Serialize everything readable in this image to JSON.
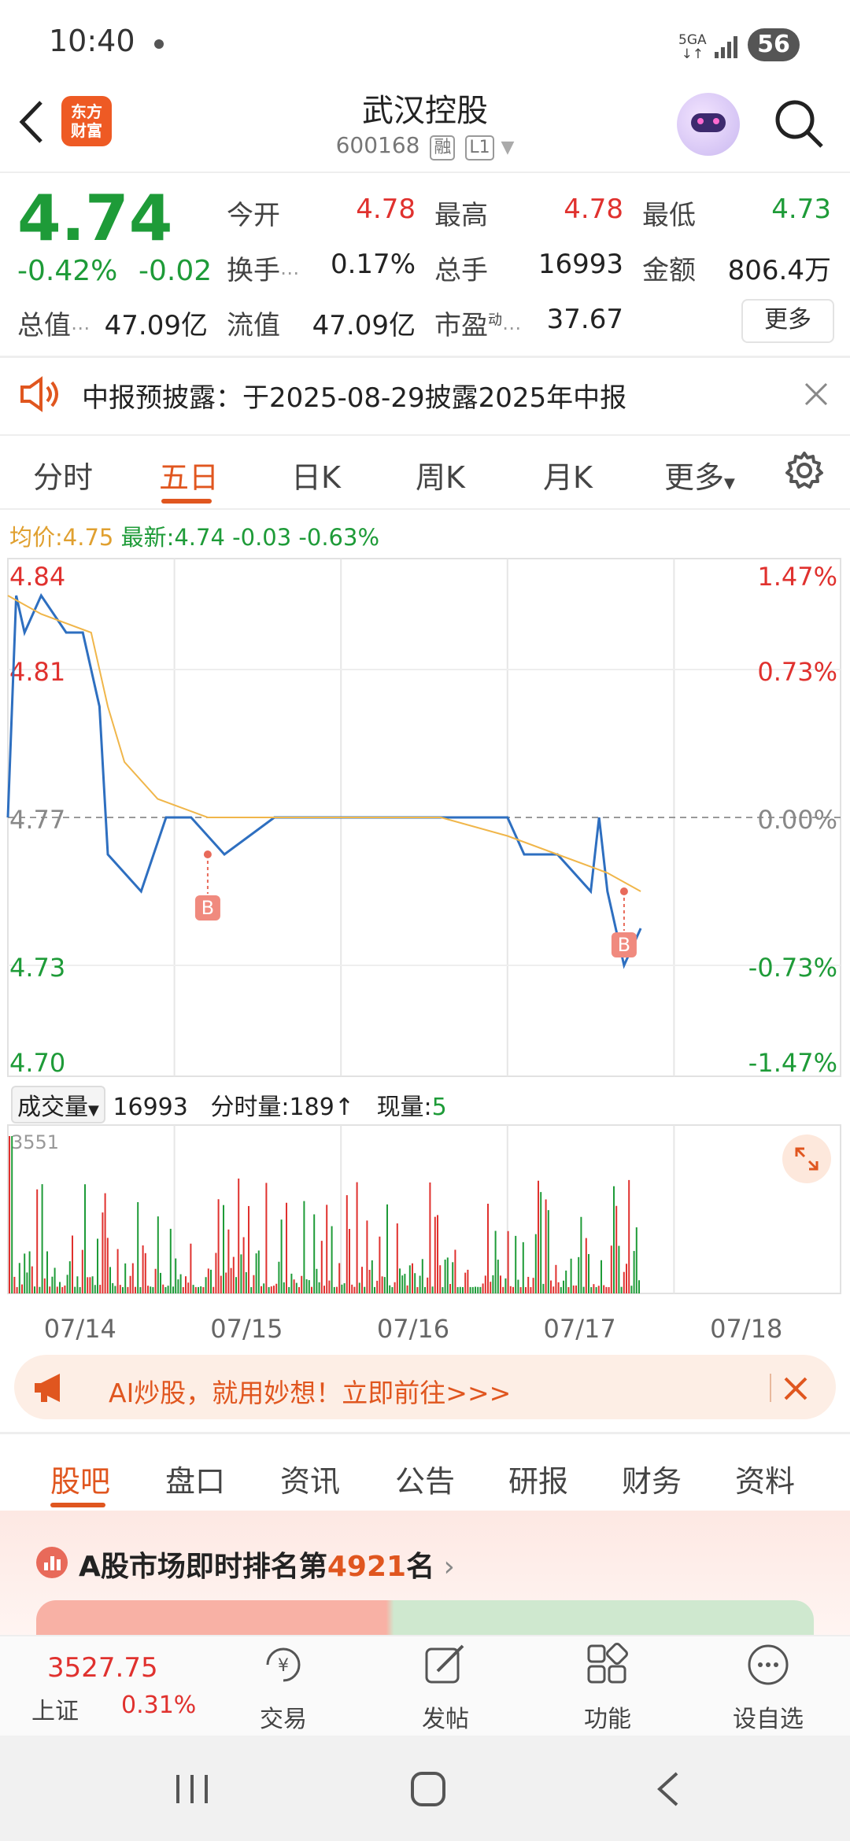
{
  "status": {
    "time": "10:40",
    "network_top": "5GA",
    "network_bottom": "↓↑",
    "battery": "56"
  },
  "header": {
    "logo_line1": "东方",
    "logo_line2": "财富",
    "title": "武汉控股",
    "code": "600168",
    "tag_margin": "融",
    "tag_level": "L1"
  },
  "quote": {
    "price": "4.74",
    "change_pct": "-0.42%",
    "change": "-0.02",
    "open_label": "今开",
    "open": "4.78",
    "high_label": "最高",
    "high": "4.78",
    "low_label": "最低",
    "low": "4.73",
    "turnover_label": "换手",
    "turnover": "0.17%",
    "volume_label": "总手",
    "volume": "16993",
    "amount_label": "金额",
    "amount": "806.4万",
    "mcap_label": "总值",
    "mcap": "47.09亿",
    "float_label": "流值",
    "float": "47.09亿",
    "pe_label": "市盈",
    "pe_sup": "动",
    "pe": "37.67",
    "more": "更多"
  },
  "notice": {
    "text": "中报预披露：于2025-08-29披露2025年中报"
  },
  "chart_tabs": [
    "分时",
    "五日",
    "日K",
    "周K",
    "月K",
    "更多"
  ],
  "chart_info": {
    "avg_label": "均价:",
    "avg": "4.75",
    "latest_label": "最新:",
    "latest": "4.74",
    "chg": "-0.03",
    "pct": "-0.63%"
  },
  "chart_data": {
    "type": "line",
    "x_labels": [
      "07/14",
      "07/15",
      "07/16",
      "07/17",
      "07/18"
    ],
    "y_ticks": [
      "4.84",
      "4.81",
      "4.77",
      "4.73",
      "4.70"
    ],
    "pct_ticks": [
      "1.47%",
      "0.73%",
      "0.00%",
      "-0.73%",
      "-1.47%"
    ],
    "ylim": [
      4.7,
      4.84
    ],
    "reference": 4.77,
    "markers": [
      "B",
      "B"
    ],
    "series": [
      {
        "name": "price",
        "color": "#2e6fc0",
        "points": [
          [
            0,
            4.77
          ],
          [
            0.05,
            4.83
          ],
          [
            0.1,
            4.82
          ],
          [
            0.2,
            4.83
          ],
          [
            0.35,
            4.82
          ],
          [
            0.45,
            4.82
          ],
          [
            0.55,
            4.8
          ],
          [
            0.6,
            4.76
          ],
          [
            0.8,
            4.75
          ],
          [
            0.95,
            4.77
          ],
          [
            1.1,
            4.77
          ],
          [
            1.3,
            4.76
          ],
          [
            1.6,
            4.77
          ],
          [
            1.9,
            4.77
          ],
          [
            2.2,
            4.77
          ],
          [
            2.5,
            4.77
          ],
          [
            2.8,
            4.77
          ],
          [
            3.0,
            4.77
          ],
          [
            3.1,
            4.76
          ],
          [
            3.3,
            4.76
          ],
          [
            3.5,
            4.75
          ],
          [
            3.55,
            4.77
          ],
          [
            3.6,
            4.75
          ],
          [
            3.7,
            4.73
          ],
          [
            3.8,
            4.74
          ]
        ]
      },
      {
        "name": "avg",
        "color": "#f0b64a",
        "points": [
          [
            0,
            4.83
          ],
          [
            0.2,
            4.825
          ],
          [
            0.5,
            4.82
          ],
          [
            0.6,
            4.8
          ],
          [
            0.7,
            4.785
          ],
          [
            0.9,
            4.775
          ],
          [
            1.2,
            4.77
          ],
          [
            2.0,
            4.77
          ],
          [
            2.6,
            4.77
          ],
          [
            3.0,
            4.765
          ],
          [
            3.3,
            4.76
          ],
          [
            3.6,
            4.755
          ],
          [
            3.8,
            4.75
          ]
        ]
      }
    ]
  },
  "volume": {
    "label": "成交量",
    "total": "16993",
    "period_label": "分时量:",
    "period": "189",
    "now_label": "现量:",
    "now": "5",
    "max": "3551"
  },
  "ad": {
    "text": "AI炒股，就用妙想！立即前往>>>"
  },
  "bottom_tabs": [
    "股吧",
    "盘口",
    "资讯",
    "公告",
    "研报",
    "财务",
    "资料"
  ],
  "rank": {
    "prefix": "A股市场即时排名第",
    "number": "4921",
    "suffix": "名"
  },
  "toolbar": {
    "index_value": "3527.75",
    "index_name": "上证",
    "index_pct": "0.31%",
    "trade": "交易",
    "post": "发帖",
    "func": "功能",
    "watch": "设自选"
  }
}
